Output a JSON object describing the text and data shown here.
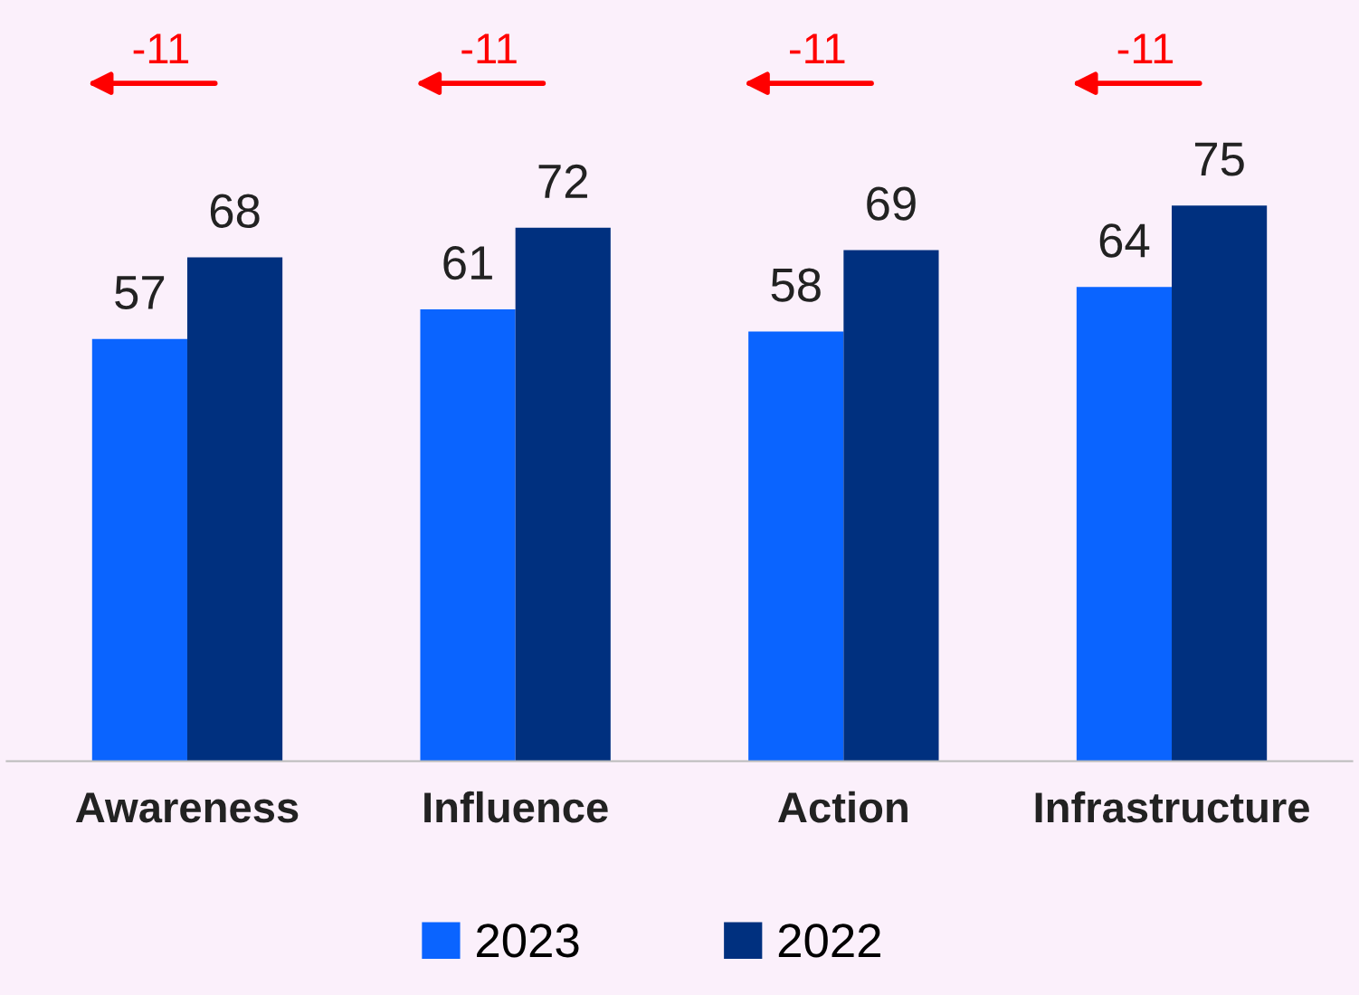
{
  "chart_data": {
    "type": "bar",
    "categories": [
      "Awareness",
      "Influence",
      "Action",
      "Infrastructure"
    ],
    "series": [
      {
        "name": "2023",
        "color": "#0a64ff",
        "values": [
          57,
          61,
          58,
          64
        ]
      },
      {
        "name": "2022",
        "color": "#00307f",
        "values": [
          68,
          72,
          69,
          75
        ]
      }
    ],
    "data_labels": true,
    "legend": "bottom",
    "grid": false,
    "annotations": [
      "-11",
      "-11",
      "-11",
      "-11"
    ]
  }
}
